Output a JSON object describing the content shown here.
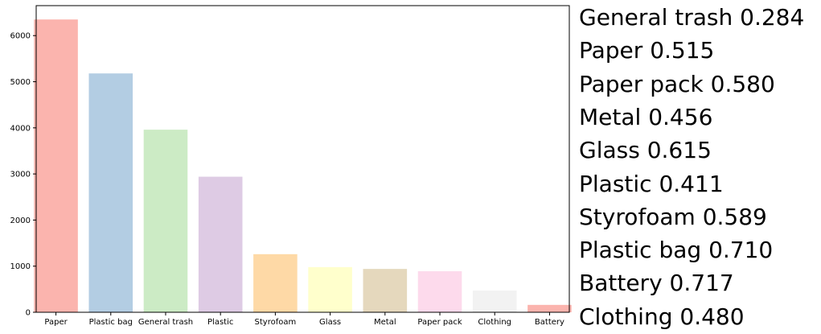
{
  "chart_data": {
    "type": "bar",
    "title": "",
    "xlabel": "",
    "ylabel": "",
    "categories": [
      "Paper",
      "Plastic bag",
      "General trash",
      "Plastic",
      "Styrofoam",
      "Glass",
      "Metal",
      "Paper pack",
      "Clothing",
      "Battery"
    ],
    "values": [
      6350,
      5180,
      3960,
      2940,
      1260,
      980,
      940,
      890,
      470,
      160
    ],
    "colors": [
      "#fbb4ae",
      "#b3cde3",
      "#ccebc5",
      "#decbe4",
      "#fed9a6",
      "#ffffcc",
      "#e5d8bd",
      "#fddaec",
      "#f2f2f2",
      "#fbb4ae"
    ],
    "ylim": [
      0,
      6650
    ],
    "yticks": [
      0,
      1000,
      2000,
      3000,
      4000,
      5000,
      6000
    ],
    "grid": false
  },
  "scores": [
    {
      "label": "General trash",
      "value": "0.284"
    },
    {
      "label": "Paper",
      "value": "0.515"
    },
    {
      "label": "Paper pack",
      "value": "0.580"
    },
    {
      "label": "Metal",
      "value": "0.456"
    },
    {
      "label": "Glass",
      "value": "0.615"
    },
    {
      "label": "Plastic",
      "value": "0.411"
    },
    {
      "label": "Styrofoam",
      "value": "0.589"
    },
    {
      "label": "Plastic bag",
      "value": "0.710"
    },
    {
      "label": "Battery",
      "value": "0.717"
    },
    {
      "label": "Clothing",
      "value": "0.480"
    }
  ]
}
